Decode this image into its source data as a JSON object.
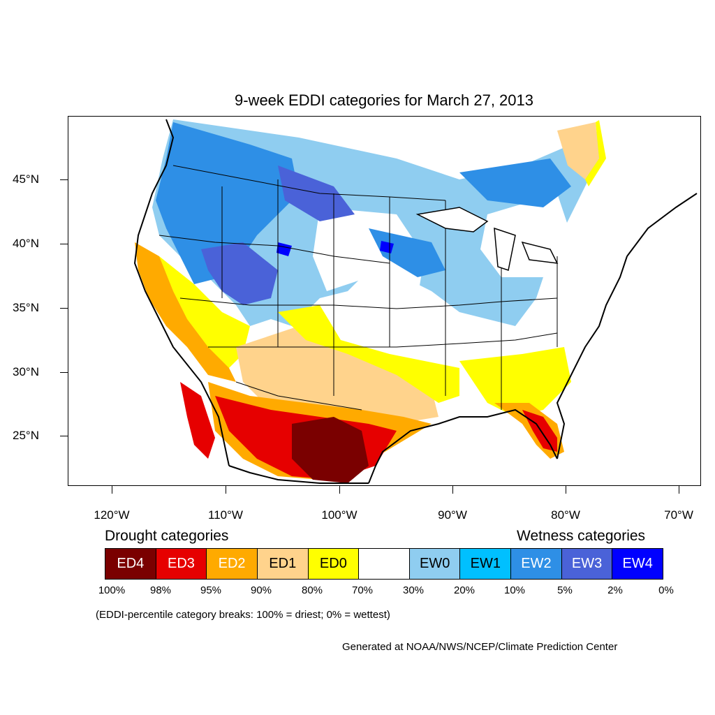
{
  "title": "9-week EDDI categories for March 27, 2013",
  "map": {
    "lat_labels": [
      "45°N",
      "40°N",
      "35°N",
      "30°N",
      "25°N"
    ],
    "lon_labels": [
      "120°W",
      "110°W",
      "100°W",
      "90°W",
      "80°W",
      "70°W"
    ],
    "colors": {
      "ED4": "#7a0000",
      "ED3": "#e60000",
      "ED2": "#ffaa00",
      "ED1": "#ffd38c",
      "ED0": "#ffff00",
      "neutral": "#ffffff",
      "EW0": "#8fcdf0",
      "EW1": "#00c0ff",
      "EW2": "#2e8fe6",
      "EW3": "#4a62d8",
      "EW4": "#0000ff"
    }
  },
  "legend": {
    "drought_heading": "Drought categories",
    "wetness_heading": "Wetness categories",
    "boxes": [
      {
        "label": "ED4",
        "color": "#7a0000",
        "text_color": "#ffffff"
      },
      {
        "label": "ED3",
        "color": "#e60000",
        "text_color": "#ffffff"
      },
      {
        "label": "ED2",
        "color": "#ffaa00",
        "text_color": "#ffffff"
      },
      {
        "label": "ED1",
        "color": "#ffd38c",
        "text_color": "#000000"
      },
      {
        "label": "ED0",
        "color": "#ffff00",
        "text_color": "#000000"
      },
      {
        "label": "",
        "color": "#ffffff",
        "text_color": "#000000"
      },
      {
        "label": "EW0",
        "color": "#8fcdf0",
        "text_color": "#000000"
      },
      {
        "label": "EW1",
        "color": "#00c0ff",
        "text_color": "#000000"
      },
      {
        "label": "EW2",
        "color": "#2e8fe6",
        "text_color": "#ffffff"
      },
      {
        "label": "EW3",
        "color": "#4a62d8",
        "text_color": "#ffffff"
      },
      {
        "label": "EW4",
        "color": "#0000ff",
        "text_color": "#ffffff"
      }
    ],
    "percent_labels": [
      "100%",
      "98%",
      "95%",
      "90%",
      "80%",
      "70%",
      "30%",
      "20%",
      "10%",
      "5%",
      "2%",
      "0%"
    ]
  },
  "breaks_note": "(EDDI-percentile category breaks: 100% = driest; 0% = wettest)",
  "credit": "Generated at NOAA/NWS/NCEP/Climate Prediction Center"
}
